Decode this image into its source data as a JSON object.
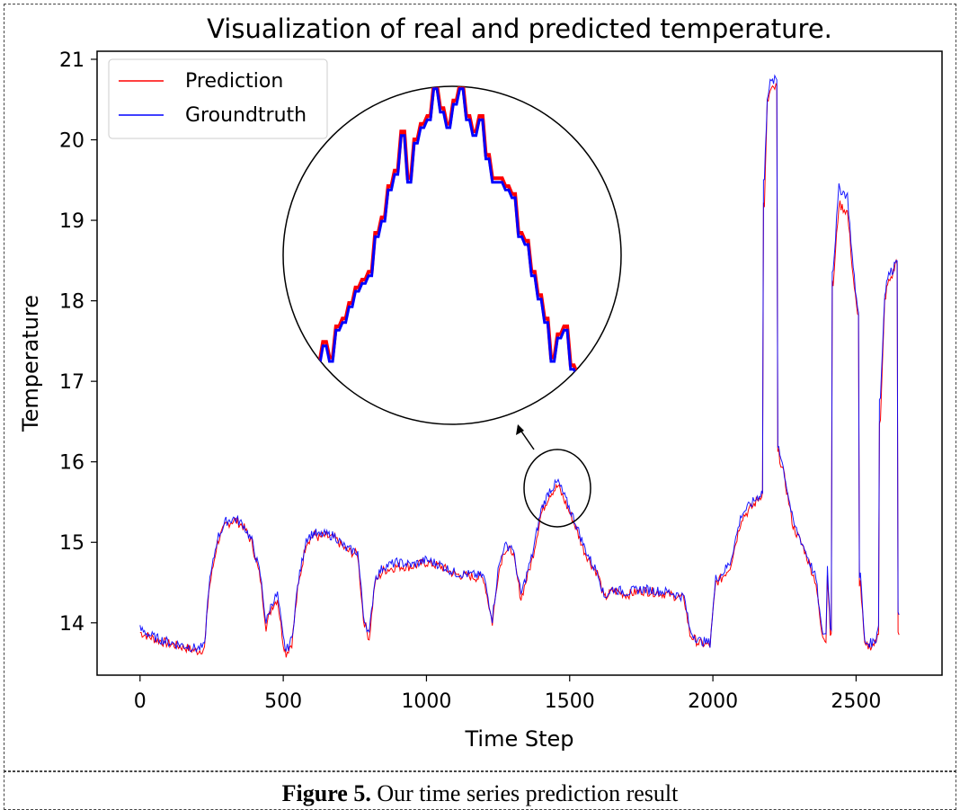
{
  "chart_data": {
    "type": "line",
    "title": "Visualization of real and predicted temperature.",
    "xlabel": "Time Step",
    "ylabel": "Temperature",
    "xlim": [
      -150,
      2800
    ],
    "ylim": [
      13.35,
      21.1
    ],
    "xticks": [
      0,
      500,
      1000,
      1500,
      2000,
      2500
    ],
    "yticks": [
      14,
      15,
      16,
      17,
      18,
      19,
      20,
      21
    ],
    "legend_position": "top-left",
    "series": [
      {
        "name": "Prediction",
        "color": "#ff0000",
        "x": [
          0,
          50,
          100,
          150,
          200,
          225,
          240,
          270,
          300,
          330,
          360,
          390,
          420,
          440,
          460,
          480,
          500,
          510,
          530,
          550,
          580,
          610,
          625,
          640,
          680,
          720,
          760,
          780,
          800,
          820,
          850,
          900,
          950,
          1000,
          1050,
          1100,
          1150,
          1200,
          1230,
          1250,
          1270,
          1300,
          1330,
          1370,
          1400,
          1430,
          1460,
          1490,
          1520,
          1550,
          1580,
          1600,
          1620,
          1650,
          1700,
          1750,
          1800,
          1850,
          1900,
          1920,
          1950,
          1990,
          2010,
          2030,
          2060,
          2100,
          2140,
          2170,
          2180,
          2190,
          2200,
          2220,
          2230,
          2250,
          2280,
          2320,
          2360,
          2380,
          2395,
          2400,
          2410,
          2420,
          2440,
          2470,
          2490,
          2505,
          2515,
          2530,
          2555,
          2570,
          2575,
          2585,
          2600,
          2610,
          2630,
          2640,
          2650
        ],
        "values": [
          13.88,
          13.8,
          13.74,
          13.7,
          13.65,
          13.68,
          14.4,
          15.0,
          15.22,
          15.28,
          15.2,
          15.0,
          14.55,
          13.95,
          14.2,
          14.3,
          13.75,
          13.62,
          13.75,
          14.4,
          15.0,
          15.1,
          15.05,
          15.08,
          15.05,
          14.9,
          14.85,
          14.05,
          13.8,
          14.5,
          14.65,
          14.7,
          14.7,
          14.75,
          14.7,
          14.6,
          14.58,
          14.55,
          14.0,
          14.6,
          14.9,
          14.9,
          14.3,
          14.8,
          15.35,
          15.6,
          15.7,
          15.45,
          15.2,
          14.9,
          14.7,
          14.6,
          14.3,
          14.4,
          14.35,
          14.4,
          14.38,
          14.35,
          14.3,
          13.85,
          13.75,
          13.72,
          14.5,
          14.55,
          14.7,
          15.3,
          15.45,
          15.6,
          19.2,
          20.45,
          20.6,
          20.65,
          16.1,
          15.8,
          15.2,
          14.9,
          14.5,
          13.85,
          13.8,
          14.6,
          13.9,
          18.2,
          19.2,
          19.1,
          18.3,
          17.8,
          14.5,
          13.7,
          13.72,
          13.75,
          13.9,
          16.5,
          18.0,
          18.2,
          18.35,
          18.5,
          13.85
        ]
      },
      {
        "name": "Groundtruth",
        "color": "#0000ff",
        "x": [
          0,
          50,
          100,
          150,
          200,
          225,
          240,
          270,
          300,
          330,
          360,
          390,
          420,
          440,
          460,
          480,
          500,
          510,
          530,
          550,
          580,
          610,
          625,
          640,
          680,
          720,
          760,
          780,
          800,
          820,
          850,
          900,
          950,
          1000,
          1050,
          1100,
          1150,
          1200,
          1230,
          1250,
          1270,
          1300,
          1330,
          1370,
          1400,
          1430,
          1460,
          1490,
          1520,
          1550,
          1580,
          1600,
          1620,
          1650,
          1700,
          1750,
          1800,
          1850,
          1900,
          1920,
          1950,
          1990,
          2010,
          2030,
          2060,
          2100,
          2140,
          2170,
          2180,
          2190,
          2200,
          2220,
          2230,
          2250,
          2280,
          2320,
          2360,
          2380,
          2395,
          2400,
          2410,
          2420,
          2440,
          2470,
          2490,
          2505,
          2515,
          2530,
          2555,
          2570,
          2575,
          2585,
          2600,
          2610,
          2630,
          2640,
          2650
        ],
        "values": [
          13.92,
          13.82,
          13.76,
          13.72,
          13.68,
          13.7,
          14.45,
          15.05,
          15.26,
          15.3,
          15.22,
          15.02,
          14.6,
          14.0,
          14.25,
          14.35,
          13.8,
          13.65,
          13.8,
          14.45,
          15.05,
          15.12,
          15.08,
          15.1,
          15.08,
          14.92,
          14.88,
          14.1,
          13.85,
          14.55,
          14.7,
          14.75,
          14.72,
          14.78,
          14.72,
          14.62,
          14.6,
          14.58,
          14.05,
          14.65,
          14.95,
          14.95,
          14.35,
          14.85,
          15.4,
          15.65,
          15.75,
          15.5,
          15.25,
          14.95,
          14.72,
          14.62,
          14.32,
          14.42,
          14.38,
          14.42,
          14.4,
          14.38,
          14.32,
          13.9,
          13.78,
          13.75,
          14.55,
          14.6,
          14.75,
          15.35,
          15.5,
          15.62,
          19.5,
          20.55,
          20.7,
          20.75,
          16.2,
          15.85,
          15.25,
          14.92,
          14.55,
          13.9,
          13.85,
          14.7,
          13.95,
          18.4,
          19.4,
          19.3,
          18.4,
          17.9,
          14.6,
          13.75,
          13.75,
          13.8,
          13.95,
          16.8,
          18.1,
          18.3,
          18.4,
          18.55,
          14.1
        ]
      }
    ],
    "inset": {
      "annotation": "magnified view of the region around time step 1450",
      "x": [
        0,
        1,
        2,
        3,
        4,
        5,
        6,
        7,
        8,
        9,
        10,
        11,
        12,
        13,
        14,
        15,
        16,
        17,
        18,
        19,
        20,
        21,
        22,
        23,
        24,
        25,
        26,
        27,
        28,
        29,
        30,
        31,
        32,
        33,
        34,
        35,
        36,
        37,
        38,
        39,
        40
      ],
      "values": [
        17.15,
        17.4,
        17.2,
        17.6,
        17.7,
        17.9,
        18.1,
        18.2,
        18.3,
        18.8,
        19.0,
        19.4,
        19.6,
        20.1,
        19.5,
        20.0,
        20.2,
        20.3,
        20.7,
        20.4,
        20.2,
        20.5,
        20.7,
        20.3,
        20.1,
        20.3,
        19.8,
        19.5,
        19.5,
        19.4,
        19.3,
        18.8,
        18.7,
        18.3,
        18.0,
        17.7,
        17.2,
        17.5,
        17.6,
        17.1,
        17.0
      ]
    }
  },
  "caption": {
    "bold": "Figure 5.",
    "text": " Our time series prediction result"
  }
}
